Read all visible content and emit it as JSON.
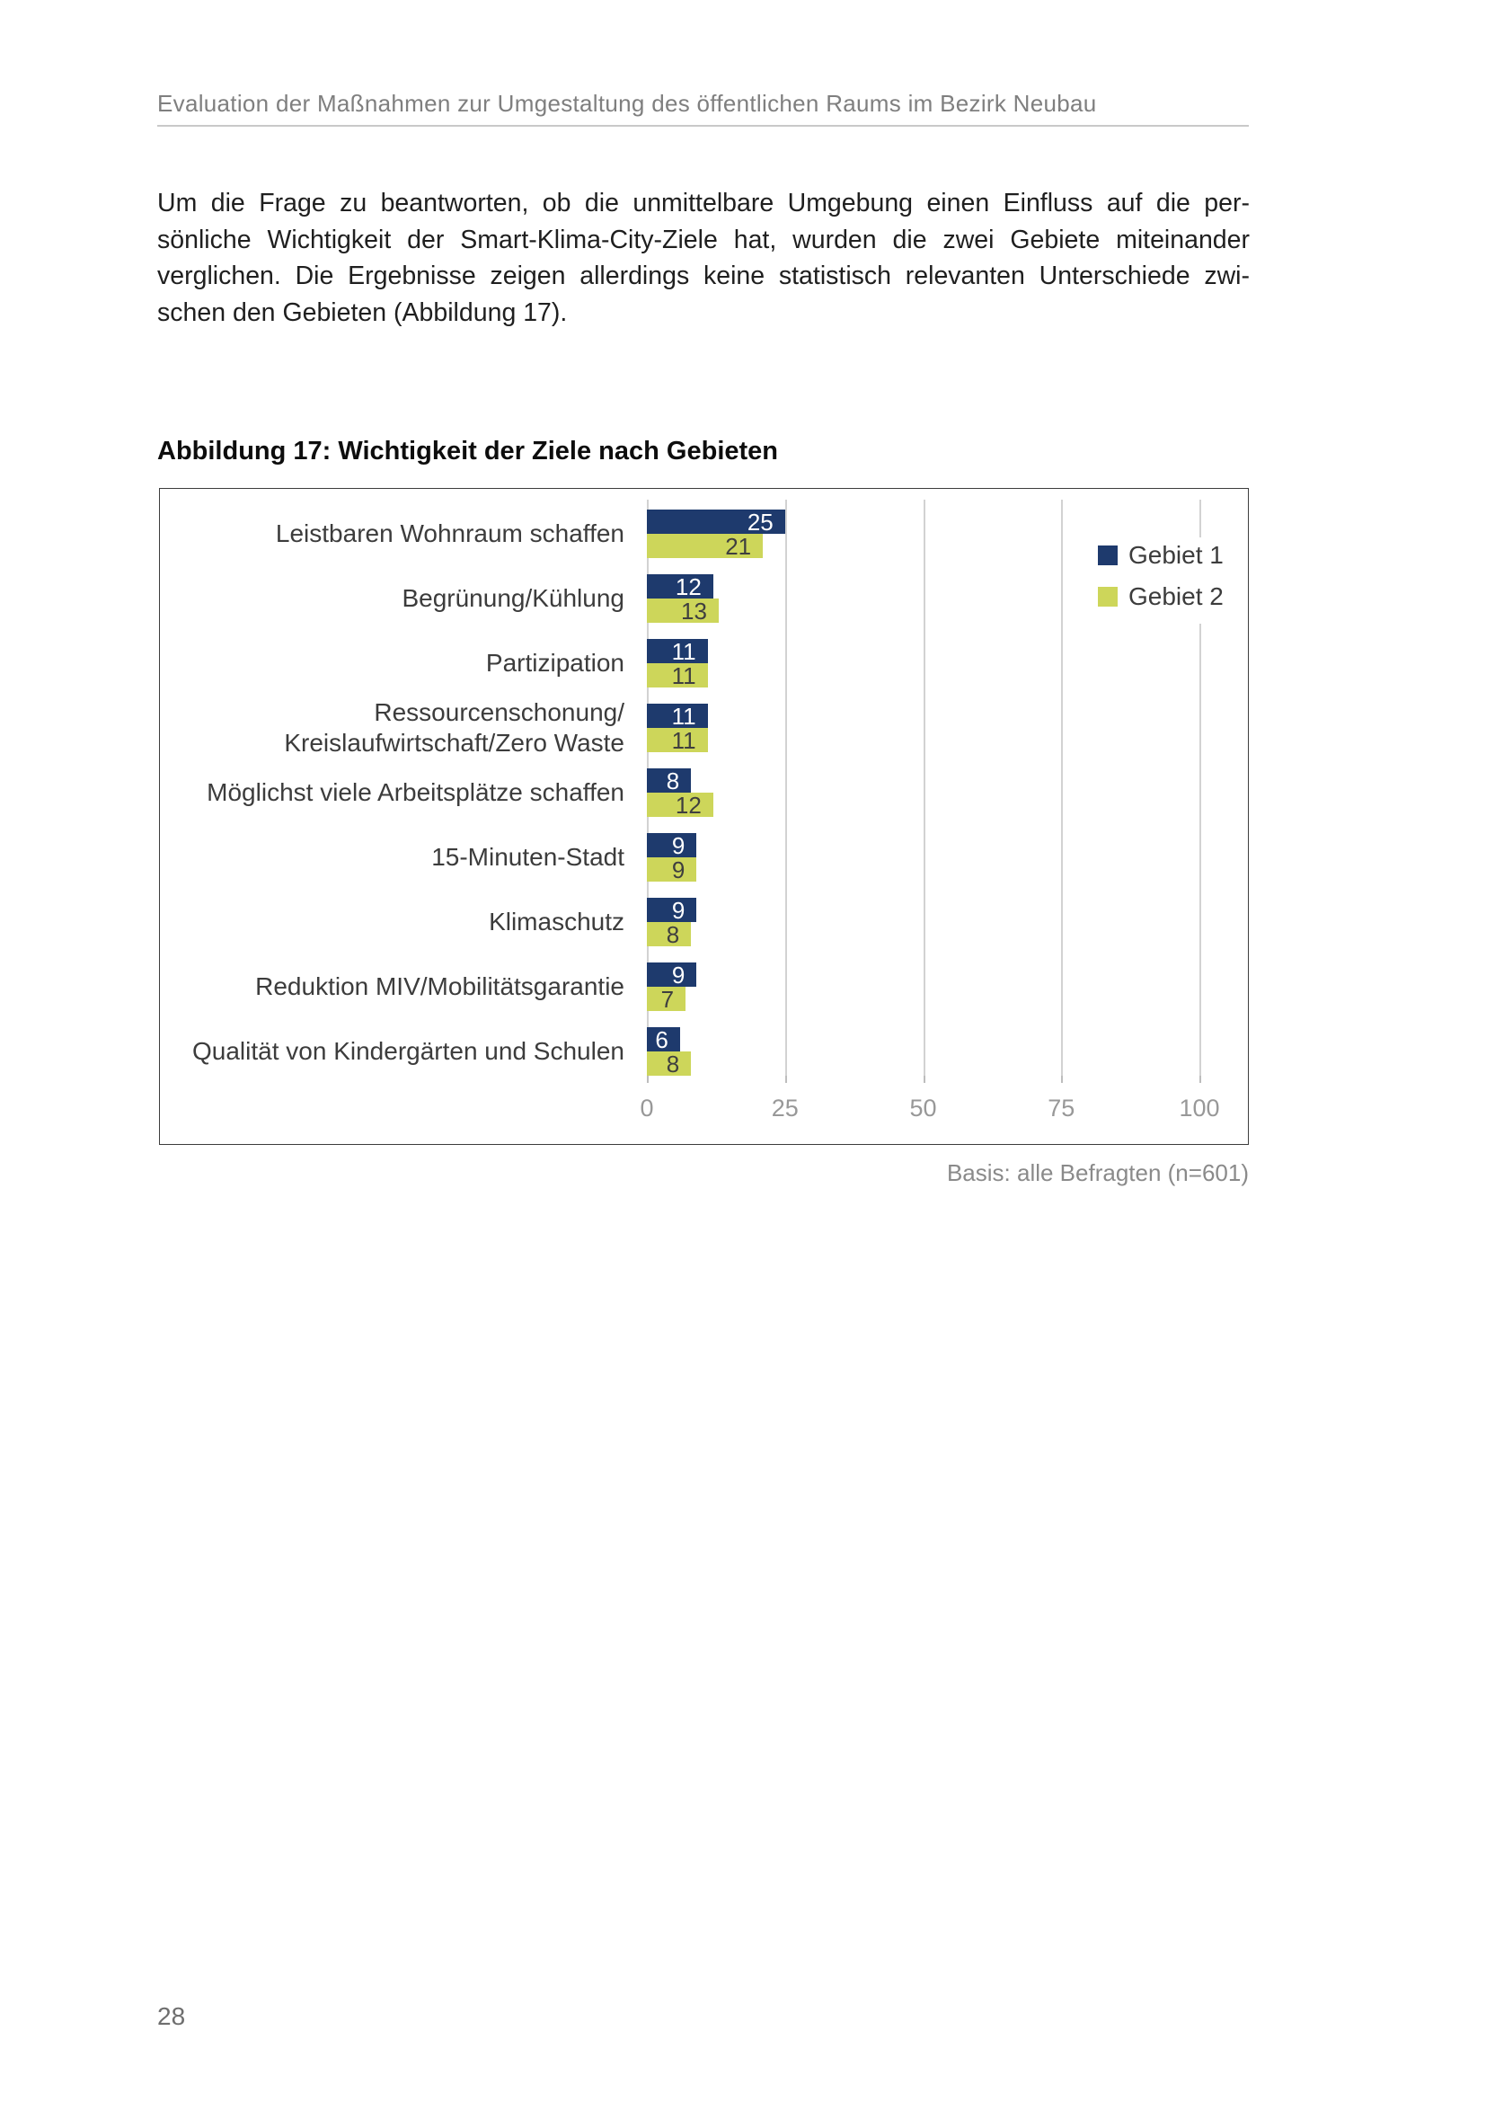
{
  "document": {
    "header": "Evaluation der Maßnahmen zur Umgestaltung des öffentlichen Raums im Bezirk Neubau",
    "paragraph_lines": [
      "Um die Frage zu beantworten, ob die unmittelbare Umgebung einen Einfluss auf die per-",
      "sönliche Wichtigkeit der Smart-Klima-City-Ziele hat, wurden die zwei Gebiete miteinander",
      "verglichen. Die Ergebnisse zeigen allerdings keine statistisch relevanten Unterschiede zwi-",
      "schen den Gebieten (Abbildung 17)."
    ],
    "figure_title": "Abbildung 17: Wichtigkeit der Ziele nach Gebieten",
    "basis_note": "Basis: alle Befragten (n=601)",
    "page_number": "28"
  },
  "chart_data": {
    "type": "bar",
    "orientation": "horizontal",
    "title": "Abbildung 17: Wichtigkeit der Ziele nach Gebieten",
    "categories": [
      "Leistbaren Wohnraum schaffen",
      "Begrünung/Kühlung",
      "Partizipation",
      "Ressourcenschonung/\nKreislaufwirtschaft/Zero Waste",
      "Möglichst viele Arbeitsplätze schaffen",
      "15-Minuten-Stadt",
      "Klimaschutz",
      "Reduktion MIV/Mobilitätsgarantie",
      "Qualität von Kindergärten und Schulen"
    ],
    "series": [
      {
        "name": "Gebiet 1",
        "color": "#1e3a6d",
        "label_color": "#ffffff",
        "values": [
          25,
          12,
          11,
          11,
          8,
          9,
          9,
          9,
          6
        ]
      },
      {
        "name": "Gebiet 2",
        "color": "#cdd65a",
        "label_color": "#3f3f3f",
        "values": [
          21,
          13,
          11,
          11,
          12,
          9,
          8,
          7,
          8
        ]
      }
    ],
    "xlim": [
      0,
      100
    ],
    "xticks": [
      0,
      25,
      50,
      75,
      100
    ],
    "legend_position": "top-right",
    "grid": "vertical",
    "data_labels": "inside-end",
    "source_note": "Basis: alle Befragten (n=601)"
  }
}
